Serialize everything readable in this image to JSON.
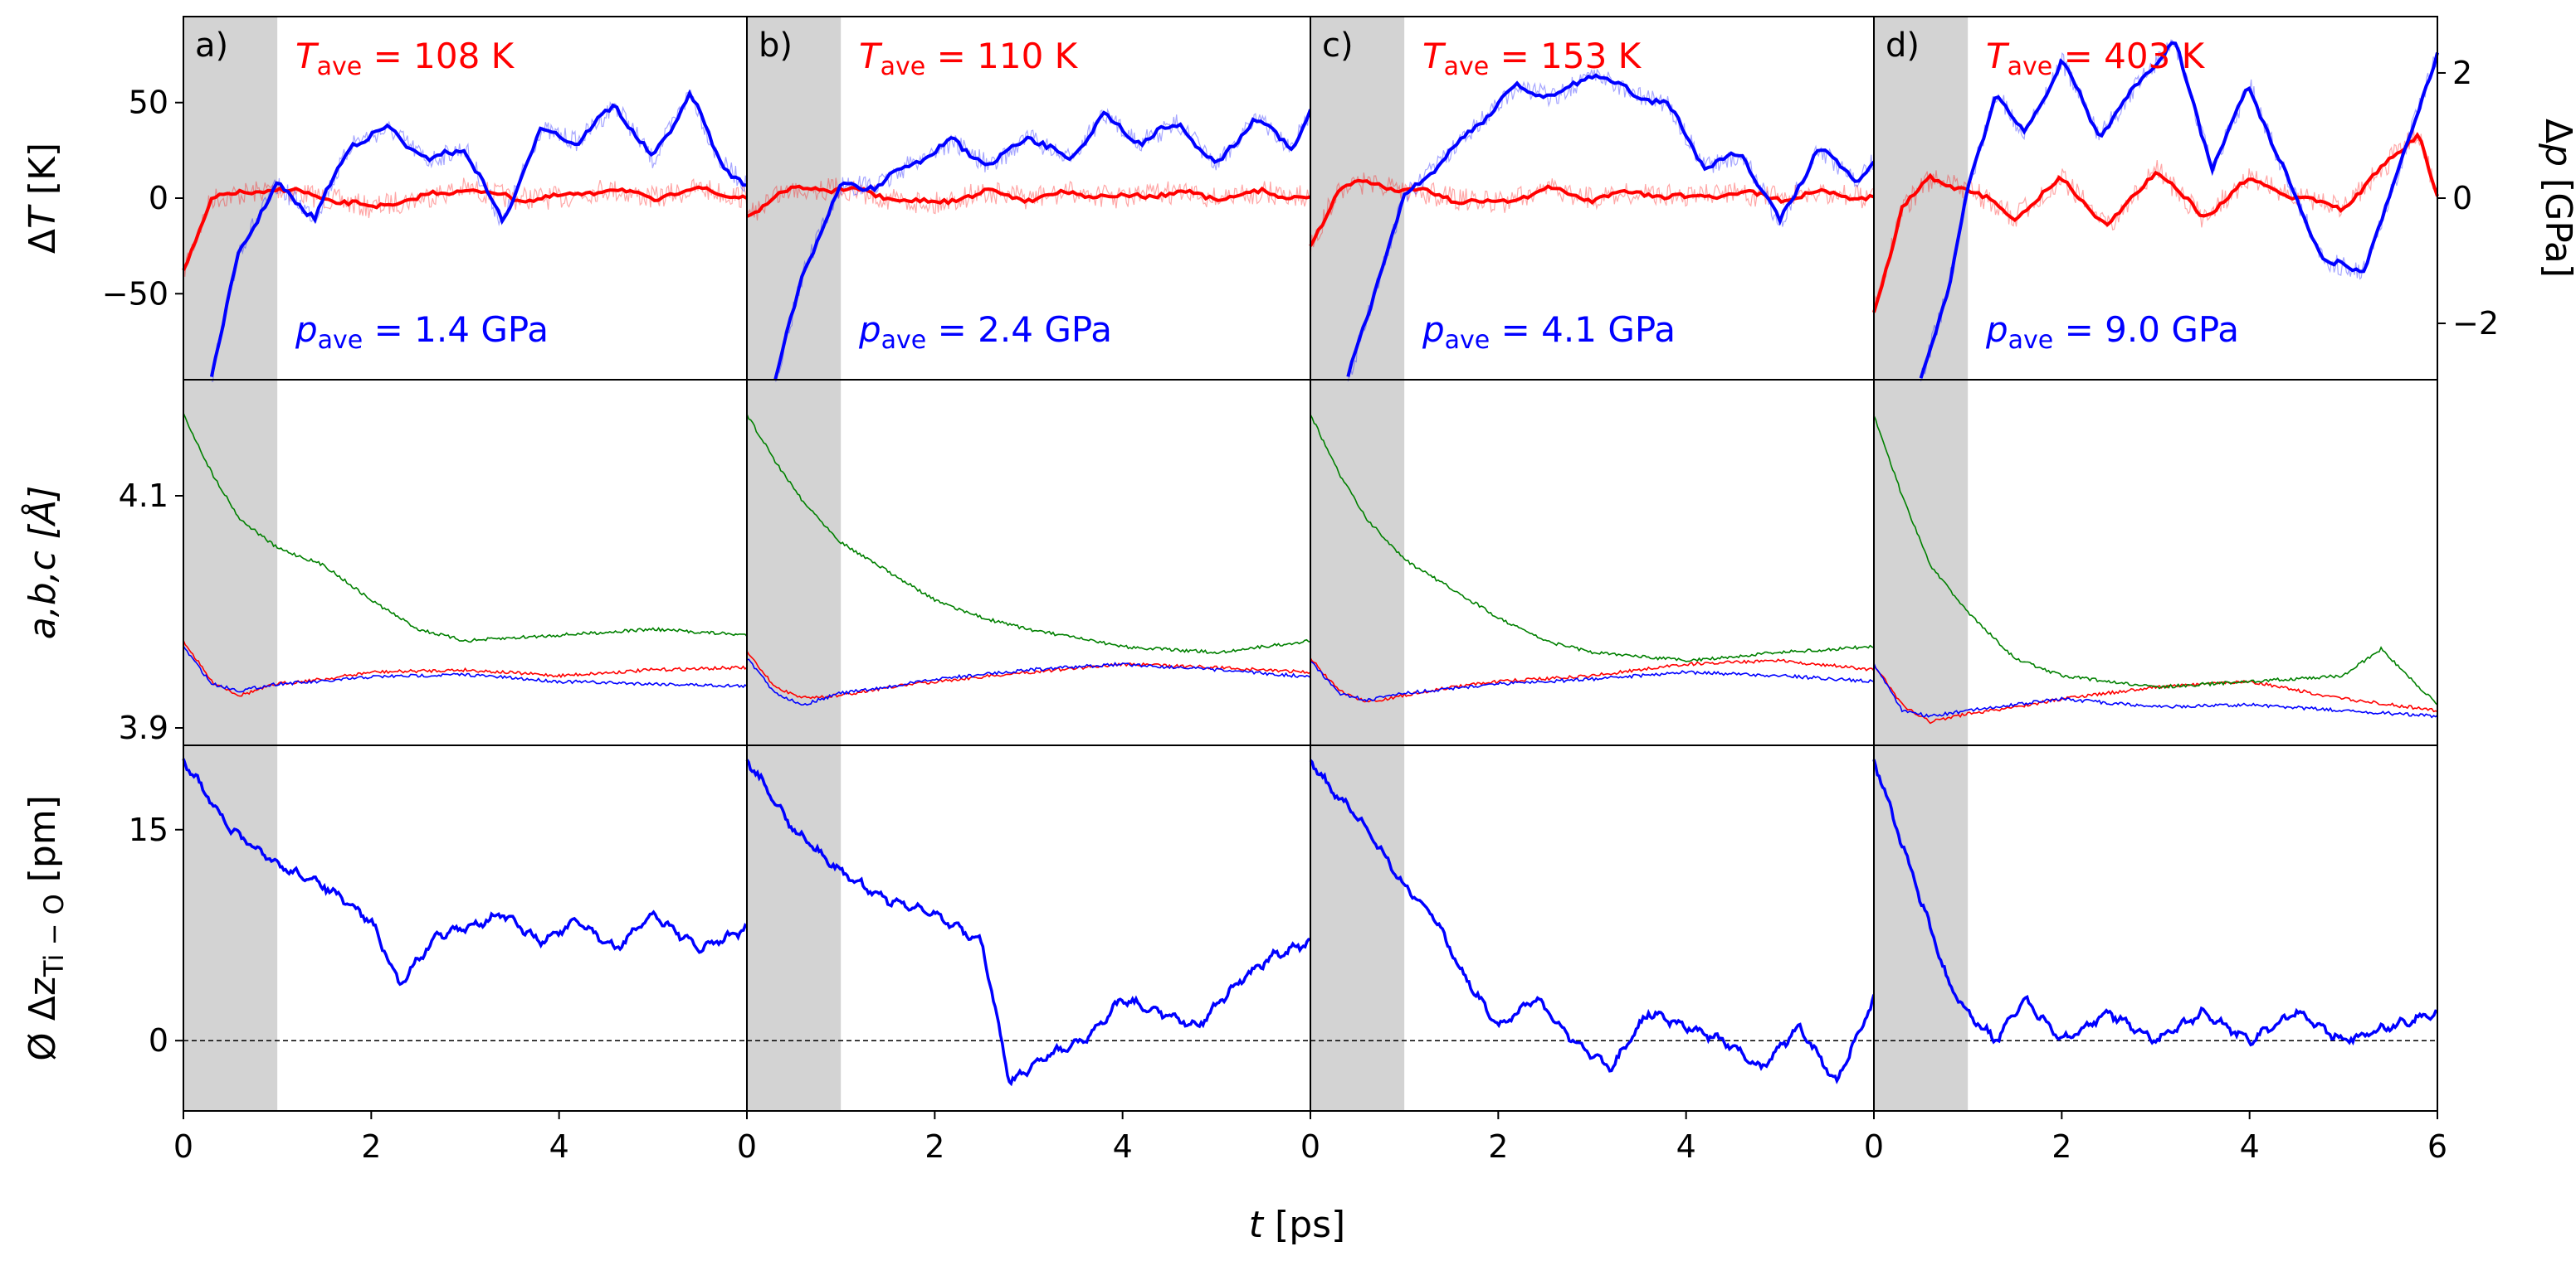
{
  "figure": {
    "xlabel": "t [ps]",
    "rows": [
      {
        "key": "dT",
        "ylabel": "ΔT [K]",
        "yticks": [
          "50",
          "0",
          "−50"
        ]
      },
      {
        "key": "lat",
        "ylabel": "a,b,c [Å]",
        "yticks": [
          "4.1",
          "3.9"
        ]
      },
      {
        "key": "dz",
        "ylabel": "Ø Δz",
        "ylabel_sub": "Ti − O",
        "ylabel_unit": " [pm]",
        "yticks": [
          "15",
          "0"
        ]
      }
    ],
    "right_axis": {
      "label": "Δp [GPa]",
      "ticks": [
        "2",
        "0",
        "−2"
      ]
    },
    "xticks": [
      "0",
      "2",
      "4",
      "0",
      "2",
      "4",
      "0",
      "2",
      "4",
      "0",
      "2",
      "4",
      "6"
    ],
    "colors": {
      "temperature": "#ff0000",
      "pressure": "#0000ff",
      "a": "#ff0000",
      "b": "#0000ff",
      "c": "#008000",
      "shade": "#d3d3d3"
    },
    "panels": [
      {
        "letter": "a)",
        "T_ave": "108 K",
        "p_ave": "1.4 GPa"
      },
      {
        "letter": "b)",
        "T_ave": "110 K",
        "p_ave": "2.4 GPa"
      },
      {
        "letter": "c)",
        "T_ave": "153 K",
        "p_ave": "4.1 GPa"
      },
      {
        "letter": "d)",
        "T_ave": "403 K",
        "p_ave": "9.0 GPa"
      }
    ]
  },
  "chart_data": {
    "type": "line",
    "x_unit": "ps",
    "xlim": [
      0,
      6
    ],
    "equilibration_shade_ps": [
      0,
      1
    ],
    "ylim": {
      "dT_K": [
        -95,
        95
      ],
      "dp_GPa": [
        -2.9,
        2.9
      ],
      "lattice_A": [
        3.885,
        4.2
      ],
      "dz_pm": [
        -5,
        21
      ]
    },
    "panels": [
      {
        "label": "a)",
        "dT": {
          "x": [
            0,
            0.3,
            0.6,
            1,
            1.5,
            2,
            2.5,
            3,
            3.5,
            4,
            4.5,
            5,
            5.5,
            6
          ],
          "y": [
            -38,
            0,
            2,
            5,
            0,
            -5,
            0,
            5,
            0,
            0,
            5,
            0,
            5,
            0
          ]
        },
        "dp": {
          "x": [
            0.3,
            0.6,
            1,
            1.4,
            1.8,
            2.2,
            2.6,
            3,
            3.4,
            3.8,
            4.2,
            4.6,
            5,
            5.4,
            5.7,
            6
          ],
          "y": [
            -2.9,
            -0.8,
            0.2,
            -0.3,
            0.9,
            1.1,
            0.6,
            0.8,
            -0.4,
            1.1,
            0.9,
            1.5,
            0.6,
            1.7,
            0.6,
            0.2
          ]
        },
        "a": {
          "x": [
            0,
            0.3,
            0.6,
            1,
            1.5,
            2,
            3,
            4,
            5,
            6
          ],
          "y": [
            3.975,
            3.94,
            3.928,
            3.938,
            3.942,
            3.948,
            3.95,
            3.945,
            3.95,
            3.952
          ]
        },
        "b": {
          "x": [
            0,
            0.3,
            0.6,
            1,
            1.5,
            2,
            3,
            4,
            5,
            6
          ],
          "y": [
            3.97,
            3.938,
            3.932,
            3.938,
            3.94,
            3.944,
            3.946,
            3.94,
            3.938,
            3.936
          ]
        },
        "c": {
          "x": [
            0,
            0.3,
            0.6,
            1,
            1.5,
            2,
            2.5,
            3,
            4,
            5,
            6
          ],
          "y": [
            4.17,
            4.12,
            4.08,
            4.055,
            4.04,
            4.01,
            3.985,
            3.975,
            3.98,
            3.985,
            3.98
          ]
        },
        "dz": {
          "x": [
            0,
            0.2,
            0.5,
            1,
            1.5,
            2,
            2.3,
            2.7,
            3,
            3.4,
            3.8,
            4.2,
            4.6,
            5,
            5.5,
            6
          ],
          "y": [
            20,
            18,
            15,
            12.5,
            11,
            8.5,
            4,
            7.5,
            8,
            9,
            7,
            8.5,
            6.5,
            9,
            6.5,
            8
          ]
        }
      },
      {
        "label": "b)",
        "dT": {
          "x": [
            0,
            0.3,
            0.6,
            1,
            1.5,
            2,
            2.5,
            3,
            3.5,
            4,
            4.5,
            5,
            5.5,
            6
          ],
          "y": [
            -10,
            2,
            5,
            5,
            0,
            -3,
            3,
            0,
            3,
            0,
            3,
            0,
            3,
            0
          ]
        },
        "dp": {
          "x": [
            0.3,
            0.6,
            1,
            1.4,
            1.8,
            2.2,
            2.6,
            3,
            3.4,
            3.8,
            4.2,
            4.6,
            5,
            5.4,
            5.8,
            6
          ],
          "y": [
            -2.9,
            -1.2,
            0.2,
            0.2,
            0.6,
            0.9,
            0.5,
            1,
            0.6,
            1.3,
            0.9,
            1.2,
            0.5,
            1.3,
            0.8,
            1.4
          ]
        },
        "a": {
          "x": [
            0,
            0.3,
            0.6,
            1,
            1.5,
            2,
            3,
            4,
            5,
            6
          ],
          "y": [
            3.965,
            3.935,
            3.926,
            3.928,
            3.935,
            3.94,
            3.948,
            3.955,
            3.952,
            3.948
          ]
        },
        "b": {
          "x": [
            0,
            0.3,
            0.6,
            1,
            1.5,
            2,
            3,
            4,
            5,
            6
          ],
          "y": [
            3.96,
            3.93,
            3.92,
            3.93,
            3.935,
            3.942,
            3.95,
            3.955,
            3.95,
            3.944
          ]
        },
        "c": {
          "x": [
            0,
            0.3,
            0.6,
            1,
            1.5,
            2,
            2.5,
            3,
            4,
            5,
            6
          ],
          "y": [
            4.17,
            4.13,
            4.095,
            4.06,
            4.035,
            4.01,
            3.995,
            3.985,
            3.97,
            3.965,
            3.975
          ]
        },
        "dz": {
          "x": [
            0,
            0.2,
            0.5,
            1,
            1.5,
            2,
            2.5,
            2.8,
            3.2,
            3.6,
            4,
            4.4,
            4.8,
            5.2,
            5.6,
            6
          ],
          "y": [
            20,
            18,
            15,
            12,
            10,
            9,
            7,
            -3,
            -1,
            0,
            3,
            2,
            1,
            4,
            6,
            7
          ]
        }
      },
      {
        "label": "c)",
        "dT": {
          "x": [
            0,
            0.3,
            0.6,
            1,
            1.5,
            2,
            2.5,
            3,
            3.5,
            4,
            4.5,
            5,
            5.5,
            6
          ],
          "y": [
            -25,
            5,
            8,
            5,
            0,
            -3,
            5,
            0,
            3,
            0,
            3,
            0,
            3,
            0
          ]
        },
        "dp": {
          "x": [
            0.4,
            0.7,
            1,
            1.4,
            1.8,
            2.2,
            2.6,
            3,
            3.4,
            3.8,
            4.2,
            4.6,
            5,
            5.4,
            5.8,
            6
          ],
          "y": [
            -2.9,
            -1.4,
            0,
            0.6,
            1.2,
            1.8,
            1.6,
            2,
            1.7,
            1.5,
            0.5,
            0.7,
            -0.4,
            0.8,
            0.3,
            0.6
          ]
        },
        "a": {
          "x": [
            0,
            0.3,
            0.6,
            1,
            1.5,
            2,
            3,
            4,
            5,
            6
          ],
          "y": [
            3.96,
            3.932,
            3.922,
            3.928,
            3.935,
            3.94,
            3.945,
            3.955,
            3.958,
            3.95
          ]
        },
        "b": {
          "x": [
            0,
            0.3,
            0.6,
            1,
            1.5,
            2,
            3,
            4,
            5,
            6
          ],
          "y": [
            3.958,
            3.93,
            3.924,
            3.93,
            3.934,
            3.938,
            3.942,
            3.948,
            3.945,
            3.94
          ]
        },
        "c": {
          "x": [
            0,
            0.3,
            0.6,
            1,
            1.5,
            2,
            2.5,
            3,
            4,
            5,
            6
          ],
          "y": [
            4.17,
            4.12,
            4.08,
            4.045,
            4.02,
            3.995,
            3.975,
            3.965,
            3.958,
            3.965,
            3.97
          ]
        },
        "dz": {
          "x": [
            0,
            0.2,
            0.5,
            1,
            1.3,
            1.6,
            2,
            2.4,
            2.8,
            3.2,
            3.6,
            4,
            4.4,
            4.8,
            5.2,
            5.6,
            6
          ],
          "y": [
            20,
            18,
            16,
            11,
            9,
            5,
            1,
            3,
            0,
            -2,
            2,
            1,
            0,
            -2,
            1,
            -3,
            3
          ]
        }
      },
      {
        "label": "d)",
        "dT": {
          "x": [
            0,
            0.3,
            0.6,
            1,
            1.5,
            2,
            2.5,
            3,
            3.5,
            4,
            4.5,
            5,
            5.5,
            5.8,
            6
          ],
          "y": [
            -60,
            -5,
            10,
            5,
            -10,
            10,
            -15,
            15,
            -10,
            10,
            0,
            -5,
            20,
            35,
            0
          ]
        },
        "dp": {
          "x": [
            0.5,
            0.8,
            1,
            1.3,
            1.6,
            2,
            2.4,
            2.8,
            3.2,
            3.6,
            4,
            4.4,
            4.8,
            5.2,
            5.6,
            5.9,
            6
          ],
          "y": [
            -2.9,
            -1.4,
            0.1,
            1.7,
            1.0,
            2.2,
            1.0,
            1.8,
            2.5,
            0.5,
            1.8,
            0.3,
            -1.0,
            -1.2,
            0.5,
            1.9,
            2.3
          ]
        },
        "a": {
          "x": [
            0,
            0.3,
            0.6,
            1,
            1.5,
            2,
            3,
            4,
            5,
            6
          ],
          "y": [
            3.955,
            3.92,
            3.905,
            3.912,
            3.918,
            3.925,
            3.935,
            3.94,
            3.925,
            3.915
          ]
        },
        "b": {
          "x": [
            0,
            0.3,
            0.6,
            1,
            1.5,
            2,
            3,
            4,
            5,
            6
          ],
          "y": [
            3.955,
            3.915,
            3.91,
            3.915,
            3.92,
            3.925,
            3.918,
            3.92,
            3.915,
            3.91
          ]
        },
        "c": {
          "x": [
            0,
            0.3,
            0.6,
            1,
            1.5,
            2,
            2.5,
            3,
            4,
            5,
            5.4,
            6
          ],
          "y": [
            4.17,
            4.1,
            4.04,
            4.0,
            3.96,
            3.945,
            3.94,
            3.935,
            3.94,
            3.945,
            3.968,
            3.92
          ]
        },
        "dz": {
          "x": [
            0,
            0.2,
            0.5,
            0.8,
            1,
            1.3,
            1.6,
            2,
            2.5,
            3,
            3.5,
            4,
            4.5,
            5,
            5.5,
            6
          ],
          "y": [
            20,
            16,
            10,
            4,
            2,
            0,
            3,
            0,
            2,
            0,
            2,
            0,
            2,
            0,
            1,
            2
          ]
        }
      }
    ]
  }
}
